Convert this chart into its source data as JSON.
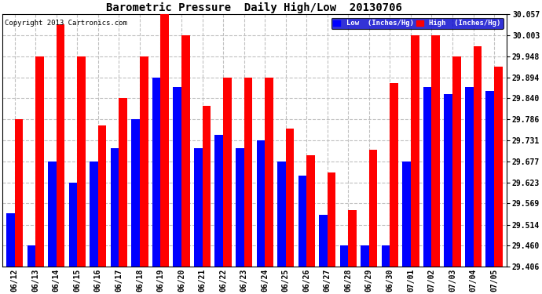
{
  "title": "Barometric Pressure  Daily High/Low  20130706",
  "copyright": "Copyright 2013 Cartronics.com",
  "legend_low": "Low  (Inches/Hg)",
  "legend_high": "High  (Inches/Hg)",
  "low_color": "#0000FF",
  "high_color": "#FF0000",
  "background_color": "#FFFFFF",
  "grid_color": "#C0C0C0",
  "yticks": [
    29.406,
    29.46,
    29.514,
    29.569,
    29.623,
    29.677,
    29.731,
    29.786,
    29.84,
    29.894,
    29.948,
    30.003,
    30.057
  ],
  "ylim": [
    29.406,
    30.057
  ],
  "dates": [
    "06/12",
    "06/13",
    "06/14",
    "06/15",
    "06/16",
    "06/17",
    "06/18",
    "06/19",
    "06/20",
    "06/21",
    "06/22",
    "06/23",
    "06/24",
    "06/25",
    "06/26",
    "06/27",
    "06/28",
    "06/29",
    "06/30",
    "07/01",
    "07/02",
    "07/03",
    "07/04",
    "07/05"
  ],
  "low_values": [
    29.543,
    29.46,
    29.677,
    29.623,
    29.677,
    29.712,
    29.786,
    29.894,
    29.87,
    29.712,
    29.745,
    29.712,
    29.731,
    29.677,
    29.64,
    29.54,
    29.46,
    29.46,
    29.46,
    29.677,
    29.87,
    29.851,
    29.87,
    29.86
  ],
  "high_values": [
    29.786,
    29.948,
    30.03,
    29.948,
    29.77,
    29.84,
    29.948,
    30.057,
    30.003,
    29.82,
    29.894,
    29.894,
    29.894,
    29.762,
    29.694,
    29.648,
    29.551,
    29.708,
    29.88,
    30.003,
    30.003,
    29.948,
    29.975,
    29.922
  ]
}
